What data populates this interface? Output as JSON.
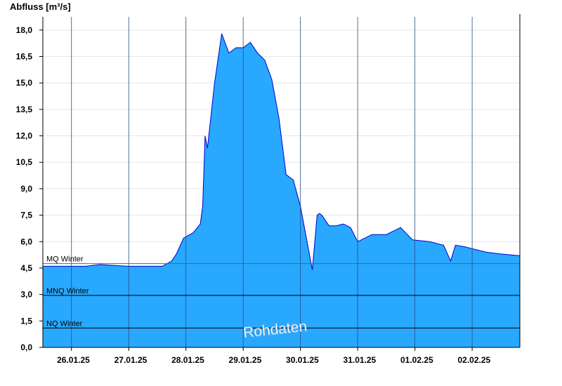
{
  "chart_data": {
    "type": "area",
    "ylabel": "Abfluss [m³/s]",
    "ylim": [
      0,
      18.75
    ],
    "yticks": [
      "0,0",
      "1,5",
      "3,0",
      "4,5",
      "6,0",
      "7,5",
      "9,0",
      "10,5",
      "12,0",
      "13,5",
      "15,0",
      "16,5",
      "18,0"
    ],
    "ytick_values": [
      0,
      1.5,
      3,
      4.5,
      6,
      7.5,
      9,
      10.5,
      12,
      13.5,
      15,
      16.5,
      18
    ],
    "xlim": [
      "2025-01-25T12:00",
      "2025-02-02T20:00"
    ],
    "day_boundaries": [
      "2025-01-26T00:00",
      "2025-01-27T00:00",
      "2025-01-28T00:00",
      "2025-01-29T00:00",
      "2025-01-30T00:00",
      "2025-01-31T00:00",
      "2025-02-01T00:00",
      "2025-02-02T00:00"
    ],
    "xticks": [
      "26.01.25",
      "27.01.25",
      "28.01.25",
      "29.01.25",
      "30.01.25",
      "31.01.25",
      "01.02.25",
      "02.02.25"
    ],
    "xtick_positions": [
      "2025-01-26T00:00",
      "2025-01-27T00:00",
      "2025-01-28T00:00",
      "2025-01-29T00:00",
      "2025-01-30T00:00",
      "2025-01-31T00:00",
      "2025-02-01T00:00",
      "2025-02-02T00:00"
    ],
    "grid": true,
    "colors": {
      "fill": "#29a8ff",
      "line": "#0000cc",
      "mq_line": "#1f8a3a",
      "ref_line": "#000000"
    },
    "reference_lines": [
      {
        "label": "MQ Winter",
        "value": 4.75
      },
      {
        "label": "MNQ Winter",
        "value": 2.95
      },
      {
        "label": "NQ Winter",
        "value": 1.1
      }
    ],
    "annotation": "Rohdaten",
    "series": [
      {
        "x": [
          "2025-01-25T12:00",
          "2025-01-25T18:00",
          "2025-01-26T00:00",
          "2025-01-26T06:00",
          "2025-01-26T12:00",
          "2025-01-26T18:00",
          "2025-01-27T00:00",
          "2025-01-27T06:00",
          "2025-01-27T10:00",
          "2025-01-27T14:00",
          "2025-01-27T18:00",
          "2025-01-27T20:00",
          "2025-01-27T23:00",
          "2025-01-28T03:00",
          "2025-01-28T06:00",
          "2025-01-28T07:00",
          "2025-01-28T08:00",
          "2025-01-28T09:00",
          "2025-01-28T12:00",
          "2025-01-28T15:00",
          "2025-01-28T18:00",
          "2025-01-28T21:00",
          "2025-01-29T00:00",
          "2025-01-29T03:00",
          "2025-01-29T06:00",
          "2025-01-29T09:00",
          "2025-01-29T12:00",
          "2025-01-29T15:00",
          "2025-01-29T18:00",
          "2025-01-29T21:00",
          "2025-01-30T00:00",
          "2025-01-30T05:00",
          "2025-01-30T07:00",
          "2025-01-30T08:00",
          "2025-01-30T09:00",
          "2025-01-30T12:00",
          "2025-01-30T15:00",
          "2025-01-30T18:00",
          "2025-01-30T21:00",
          "2025-01-31T00:00",
          "2025-01-31T06:00",
          "2025-01-31T09:00",
          "2025-01-31T12:00",
          "2025-01-31T18:00",
          "2025-01-31T23:00",
          "2025-02-01T06:00",
          "2025-02-01T12:00",
          "2025-02-01T15:00",
          "2025-02-01T17:00",
          "2025-02-01T21:00",
          "2025-02-02T00:00",
          "2025-02-02T06:00",
          "2025-02-02T12:00",
          "2025-02-02T20:00"
        ],
        "y": [
          4.6,
          4.6,
          4.6,
          4.6,
          4.7,
          4.65,
          4.6,
          4.6,
          4.6,
          4.6,
          4.9,
          5.3,
          6.2,
          6.5,
          7.0,
          8.0,
          12.0,
          11.3,
          15.0,
          17.8,
          16.7,
          17.0,
          17.0,
          17.3,
          16.7,
          16.3,
          15.2,
          13.0,
          9.8,
          9.5,
          8.0,
          4.4,
          7.5,
          7.6,
          7.5,
          6.9,
          6.9,
          7.0,
          6.8,
          6.0,
          6.4,
          6.4,
          6.4,
          6.8,
          6.1,
          6.0,
          5.8,
          4.9,
          5.8,
          5.7,
          5.6,
          5.4,
          5.3,
          5.2
        ]
      }
    ]
  }
}
